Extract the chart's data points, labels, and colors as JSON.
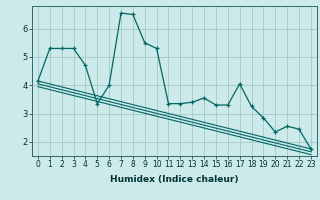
{
  "xlabel": "Humidex (Indice chaleur)",
  "background_color": "#cceaea",
  "grid_color": "#aacccc",
  "line_color": "#006666",
  "x_values": [
    0,
    1,
    2,
    3,
    4,
    5,
    6,
    7,
    8,
    9,
    10,
    11,
    12,
    13,
    14,
    15,
    16,
    17,
    18,
    19,
    20,
    21,
    22,
    23
  ],
  "curve1": [
    4.15,
    5.3,
    5.3,
    5.3,
    4.7,
    3.35,
    4.0,
    6.55,
    6.5,
    5.5,
    5.3,
    3.35,
    3.35,
    3.4,
    3.55,
    3.3,
    3.3,
    4.05,
    3.25,
    2.85,
    2.35,
    2.55,
    2.45,
    1.75
  ],
  "lines": [
    [
      [
        0,
        4.15
      ],
      [
        23,
        1.75
      ]
    ],
    [
      [
        0,
        4.05
      ],
      [
        23,
        1.65
      ]
    ],
    [
      [
        0,
        3.95
      ],
      [
        23,
        1.55
      ]
    ]
  ],
  "ylim": [
    1.5,
    6.8
  ],
  "xlim": [
    -0.5,
    23.5
  ],
  "yticks": [
    2,
    3,
    4,
    5,
    6
  ],
  "xticks": [
    0,
    1,
    2,
    3,
    4,
    5,
    6,
    7,
    8,
    9,
    10,
    11,
    12,
    13,
    14,
    15,
    16,
    17,
    18,
    19,
    20,
    21,
    22,
    23
  ],
  "tick_fontsize": 5.5,
  "xlabel_fontsize": 6.5
}
